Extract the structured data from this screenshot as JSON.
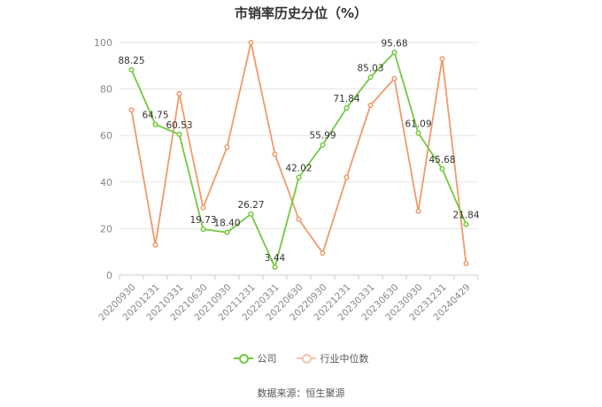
{
  "chart_data": {
    "type": "line",
    "title": "市销率历史分位（%）",
    "categories": [
      "20200930",
      "20201231",
      "20210331",
      "20210630",
      "20210930",
      "20211231",
      "20220331",
      "20220630",
      "20220930",
      "20221231",
      "20230331",
      "20230630",
      "20230930",
      "20231231",
      "20240429"
    ],
    "ylim": [
      0,
      100
    ],
    "yticks": [
      0,
      20,
      40,
      60,
      80,
      100
    ],
    "grid": true,
    "legend_position": "bottom",
    "series": [
      {
        "name": "公司",
        "color": "#72c93f",
        "values": [
          88.25,
          64.75,
          60.53,
          19.73,
          18.4,
          26.27,
          3.44,
          42.02,
          55.99,
          71.84,
          85.03,
          95.68,
          61.09,
          45.68,
          21.84
        ],
        "data_labels": [
          "88.25",
          "64.75",
          "60.53",
          "19.73",
          "18.40",
          "26.27",
          "3.44",
          "42.02",
          "55.99",
          "71.84",
          "85.03",
          "95.68",
          "61.09",
          "45.68",
          "21.84"
        ]
      },
      {
        "name": "行业中位数",
        "color": "#f09a6a",
        "values": [
          71,
          13,
          78,
          29,
          55,
          100,
          52,
          24,
          9.5,
          42,
          73,
          84.5,
          27.5,
          93,
          5
        ]
      }
    ]
  },
  "footer": {
    "source": "数据来源：恒生聚源"
  }
}
